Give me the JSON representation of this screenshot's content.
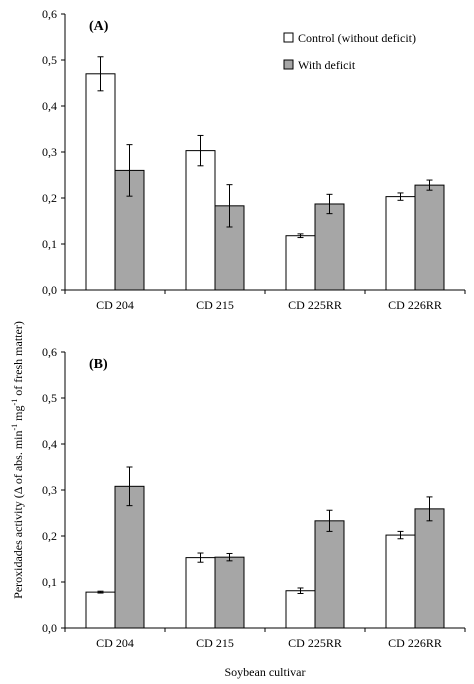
{
  "chart_data": [
    {
      "type": "bar",
      "panel_label": "(A)",
      "categories": [
        "CD 204",
        "CD 215",
        "CD 225RR",
        "CD 226RR"
      ],
      "series": [
        {
          "name": "Control (without deficit)",
          "color": "#ffffff",
          "values": [
            0.47,
            0.303,
            0.118,
            0.203
          ],
          "errors": [
            0.037,
            0.033,
            0.004,
            0.008
          ]
        },
        {
          "name": "With deficit",
          "color": "#a6a6a6",
          "values": [
            0.26,
            0.183,
            0.187,
            0.228
          ],
          "errors": [
            0.056,
            0.046,
            0.021,
            0.011
          ]
        }
      ],
      "ylim": [
        0,
        0.6
      ],
      "yticks": [
        "0,0",
        "0,1",
        "0,2",
        "0,3",
        "0,4",
        "0,5",
        "0,6"
      ],
      "legend": "top-right",
      "grid": false
    },
    {
      "type": "bar",
      "panel_label": "(B)",
      "categories": [
        "CD 204",
        "CD 215",
        "CD 225RR",
        "CD 226RR"
      ],
      "series": [
        {
          "name": "Control (without deficit)",
          "color": "#ffffff",
          "values": [
            0.078,
            0.153,
            0.081,
            0.202
          ],
          "errors": [
            0.002,
            0.01,
            0.006,
            0.008
          ]
        },
        {
          "name": "With deficit",
          "color": "#a6a6a6",
          "values": [
            0.308,
            0.154,
            0.233,
            0.259
          ],
          "errors": [
            0.042,
            0.008,
            0.023,
            0.026
          ]
        }
      ],
      "ylim": [
        0,
        0.6
      ],
      "yticks": [
        "0,0",
        "0,1",
        "0,2",
        "0,3",
        "0,4",
        "0,5",
        "0,6"
      ],
      "legend": "none",
      "grid": false
    }
  ],
  "ylabel_main": "Peroxidades activity (Δ of abs. min",
  "ylabel_sup1": "-1",
  "ylabel_mid": " mg",
  "ylabel_sup2": "-1",
  "ylabel_end": " of fresh matter)",
  "xlabel": "Soybean cultivar"
}
